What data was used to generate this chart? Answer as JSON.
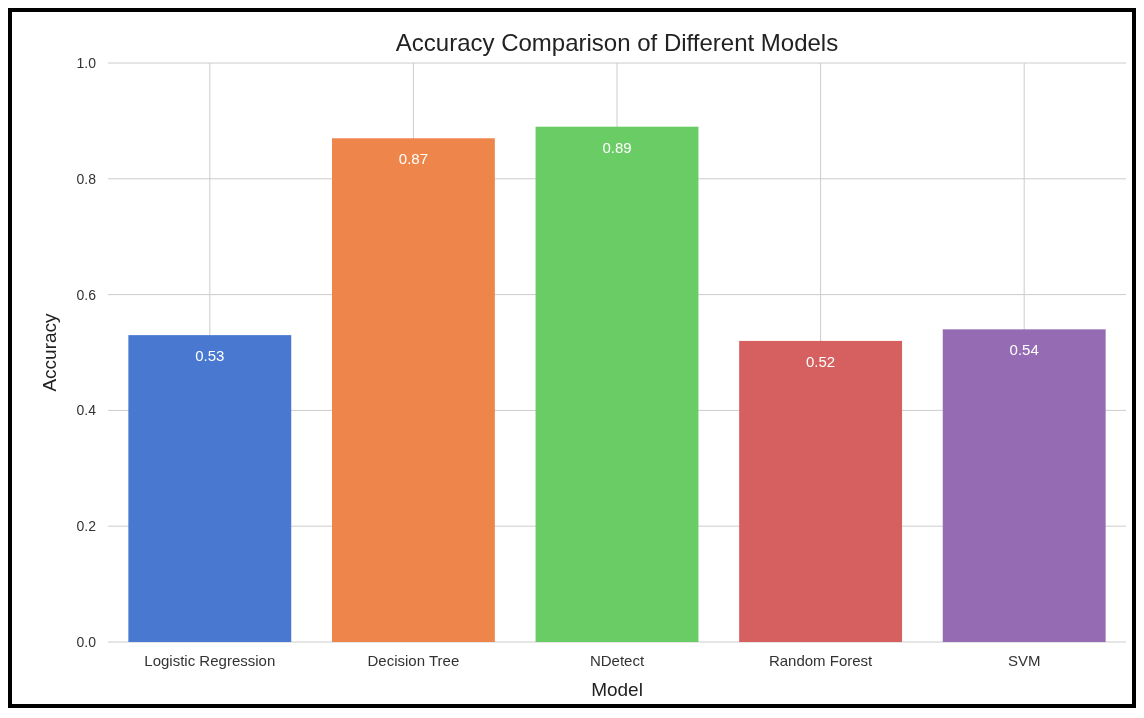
{
  "chart_data": {
    "type": "bar",
    "title": "Accuracy Comparison of Different Models",
    "xlabel": "Model",
    "ylabel": "Accuracy",
    "categories": [
      "Logistic Regression",
      "Decision Tree",
      "NDetect",
      "Random Forest",
      "SVM"
    ],
    "values": [
      0.53,
      0.87,
      0.89,
      0.52,
      0.54
    ],
    "colors": [
      "#4878cf",
      "#ee854a",
      "#6acc64",
      "#d65f5f",
      "#956cb4"
    ],
    "ylim": [
      0,
      1
    ],
    "yticks": [
      {
        "value": 0,
        "label": "0.0"
      },
      {
        "value": 0.2,
        "label": "0.2"
      },
      {
        "value": 0.4,
        "label": "0.4"
      },
      {
        "value": 0.6,
        "label": "0.6"
      },
      {
        "value": 0.8,
        "label": "0.8"
      },
      {
        "value": 1,
        "label": "1.0"
      }
    ],
    "grid": true,
    "data_labels": true
  }
}
